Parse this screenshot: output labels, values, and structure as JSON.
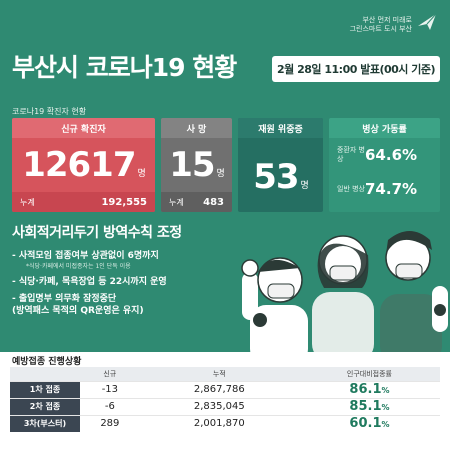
{
  "header": {
    "logo_line1": "부산 먼저 미래로",
    "logo_line2": "그린스마트 도시 부산",
    "title": "부산시 코로나19 현황",
    "date": "2월 28일 11:00 발표(00시 기준)"
  },
  "section_label": "코로나19 확진자 현황",
  "stats": {
    "new": {
      "label": "신규 확진자",
      "value": "12617",
      "unit": "명",
      "cum_label": "누계",
      "cum_value": "192,555"
    },
    "death": {
      "label": "사 망",
      "value": "15",
      "unit": "명",
      "cum_label": "누계",
      "cum_value": "483"
    },
    "severe": {
      "label": "재원 위중증",
      "value": "53",
      "unit": "명"
    },
    "bed": {
      "label": "병상 가동률",
      "row1_label": "중환자 병상",
      "row1_value": "64.6%",
      "row2_label": "일반 병상",
      "row2_value": "74.7%"
    }
  },
  "measures": {
    "title": "사회적거리두기 방역수칙 조정",
    "item1": "- 사적모임 접종여부 상관없이 6명까지",
    "item1_sub": "*식당·카페에서 미접종자는 1인 단독 이용",
    "item2": "- 식당·카페, 목욕장업 등 22시까지 운영",
    "item3": "- 출입명부 의무화 잠정중단",
    "item3_sub": "(방역패스 목적의 QR운영은 유지)"
  },
  "vaccination": {
    "title": "예방접종 진행상황",
    "columns": [
      "",
      "신규",
      "누적",
      "인구대비접종률"
    ],
    "rows": [
      {
        "label": "1차 접종",
        "new": "-13",
        "cumulative": "2,867,786",
        "rate": "86.1",
        "unit": "%"
      },
      {
        "label": "2차 접종",
        "new": "-6",
        "cumulative": "2,835,045",
        "rate": "85.1",
        "unit": "%"
      },
      {
        "label": "3차(부스터)",
        "new": "289",
        "cumulative": "2,001,870",
        "rate": "60.1",
        "unit": "%"
      }
    ]
  }
}
